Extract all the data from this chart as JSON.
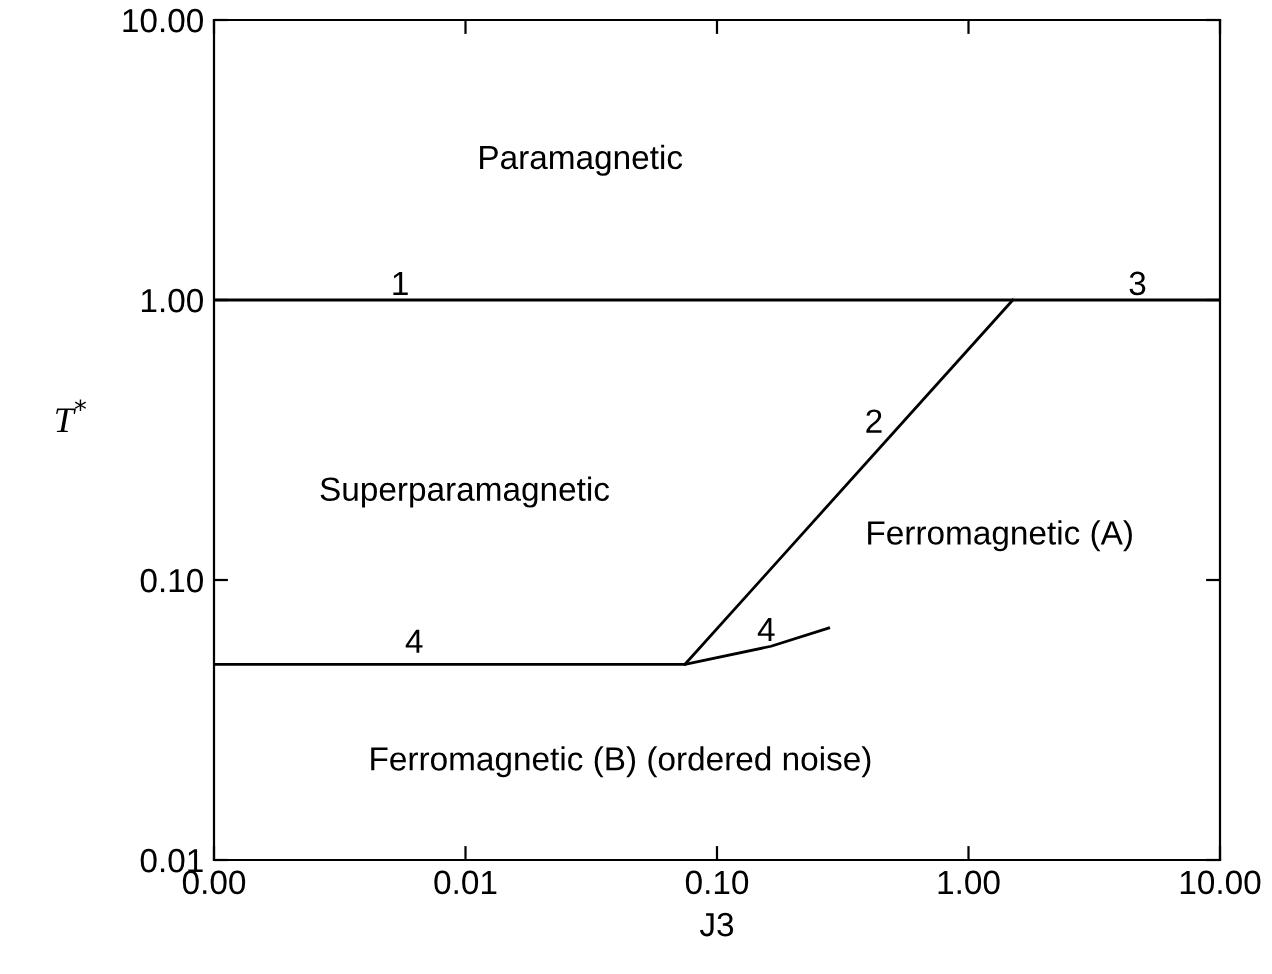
{
  "chart_data": {
    "type": "line",
    "xlabel": "J3",
    "ylabel": "T$^{*}$",
    "log": "xy",
    "grid": false,
    "legend": false,
    "line_style": "solid",
    "marker": "none",
    "series": [
      {
        "color": "#000000",
        "x": [
          0.001,
          10
        ],
        "values": [
          1,
          1
        ]
      },
      {
        "color": "#000000",
        "x": [
          0.0746,
          1.5
        ],
        "values": [
          0.05,
          1
        ]
      },
      {
        "color": "#000000",
        "x": [
          0.001,
          0.0746,
          0.164,
          0.278
        ],
        "values": [
          0.05,
          0.05,
          0.058,
          0.0674
        ]
      }
    ],
    "annotations": [
      "1",
      "3",
      "2",
      "4",
      "4",
      "Paramagnetic",
      "Superparamagnetic",
      "Ferromagnetic (A)",
      "Ferromagnetic (B) (ordered noise)"
    ],
    "xlim": [
      0.001,
      10
    ],
    "ylim": [
      0.01,
      10
    ],
    "xticks": [
      {
        "value": 0.001,
        "label": "0.00"
      },
      {
        "value": 0.01,
        "label": "0.01"
      },
      {
        "value": 0.1,
        "label": "0.10"
      },
      {
        "value": 1,
        "label": "1.00"
      },
      {
        "value": 10,
        "label": "10.00"
      }
    ],
    "yticks": [
      {
        "value": 0.01,
        "label": "0.01"
      },
      {
        "value": 0.1,
        "label": "0.10"
      },
      {
        "value": 1,
        "label": "1.00"
      },
      {
        "value": 10,
        "label": "10.00"
      }
    ]
  }
}
